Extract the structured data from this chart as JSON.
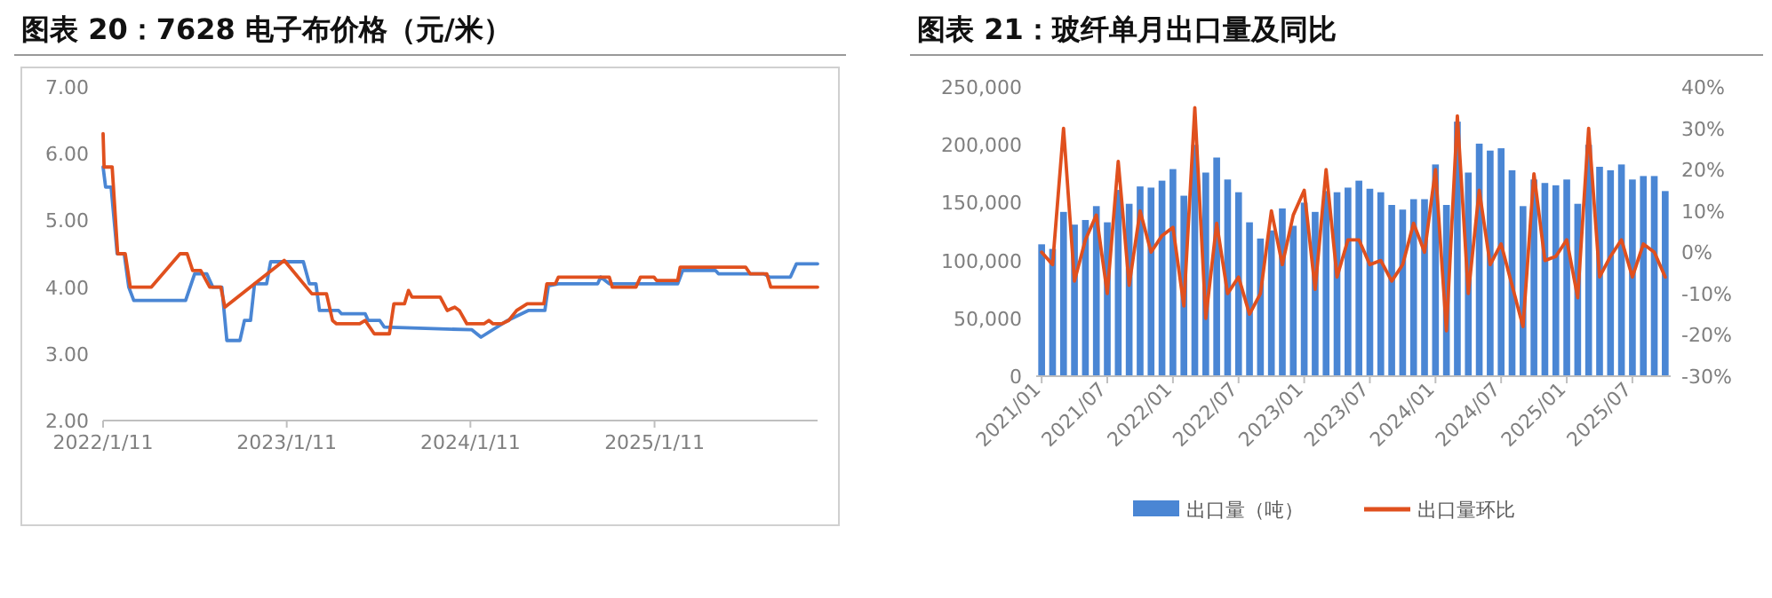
{
  "chart_data": [
    {
      "type": "line",
      "title": "图表 20：7628 电子布价格（元/米）",
      "xlim": [
        "2022-01-11",
        "2025-12-01"
      ],
      "xticks": [
        {
          "value": "2022-01-11",
          "label": "2022/1/11"
        },
        {
          "value": "2023-01-11",
          "label": "2023/1/11"
        },
        {
          "value": "2024-01-11",
          "label": "2024/1/11"
        },
        {
          "value": "2025-01-11",
          "label": "2025/1/11"
        }
      ],
      "ylim": [
        2,
        7
      ],
      "yticks": [
        {
          "value": 2,
          "label": "2.00"
        },
        {
          "value": 3,
          "label": "3.00"
        },
        {
          "value": 4,
          "label": "4.00"
        },
        {
          "value": 5,
          "label": "5.00"
        },
        {
          "value": 6,
          "label": "6.00"
        },
        {
          "value": 7,
          "label": "7.00"
        }
      ],
      "series": [
        {
          "color": "#4a86d4",
          "x": [
            "2022-01-11",
            "2022-01-16",
            "2022-01-27",
            "2022-02-08",
            "2022-02-22",
            "2022-03-03",
            "2022-03-13",
            "2022-06-24",
            "2022-07-12",
            "2022-08-05",
            "2022-08-17",
            "2022-09-04",
            "2022-09-14",
            "2022-10-10",
            "2022-10-19",
            "2022-10-31",
            "2022-11-08",
            "2022-12-02",
            "2022-12-10",
            "2023-02-13",
            "2023-02-25",
            "2023-03-10",
            "2023-03-17",
            "2023-04-24",
            "2023-04-30",
            "2023-06-16",
            "2023-06-22",
            "2023-07-15",
            "2023-07-24",
            "2024-01-14",
            "2024-02-01",
            "2024-03-25",
            "2024-05-05",
            "2024-06-07",
            "2024-06-14",
            "2024-07-04",
            "2024-09-20",
            "2024-09-26",
            "2024-10-13",
            "2025-01-05",
            "2025-02-26",
            "2025-03-08",
            "2025-05-12",
            "2025-05-18",
            "2025-08-16",
            "2025-08-28",
            "2025-10-08",
            "2025-10-20",
            "2025-12-01"
          ],
          "values": [
            5.8,
            5.5,
            5.5,
            4.5,
            4.5,
            4.0,
            3.8,
            3.8,
            4.2,
            4.2,
            4.0,
            4.0,
            3.2,
            3.2,
            3.5,
            3.5,
            4.05,
            4.05,
            4.38,
            4.38,
            4.05,
            4.05,
            3.65,
            3.65,
            3.6,
            3.6,
            3.5,
            3.5,
            3.4,
            3.36,
            3.25,
            3.5,
            3.65,
            3.65,
            4.02,
            4.05,
            4.05,
            4.15,
            4.05,
            4.05,
            4.05,
            4.25,
            4.25,
            4.2,
            4.2,
            4.15,
            4.15,
            4.35,
            4.35
          ]
        },
        {
          "color": "#e0501e",
          "x": [
            "2022-01-11",
            "2022-01-13",
            "2022-01-29",
            "2022-02-09",
            "2022-02-24",
            "2022-03-06",
            "2022-04-17",
            "2022-06-13",
            "2022-06-27",
            "2022-07-08",
            "2022-07-24",
            "2022-08-11",
            "2022-09-02",
            "2022-09-10",
            "2023-01-06",
            "2023-03-02",
            "2023-03-31",
            "2023-04-12",
            "2023-04-20",
            "2023-06-05",
            "2023-06-16",
            "2023-07-04",
            "2023-08-03",
            "2023-08-12",
            "2023-09-02",
            "2023-09-10",
            "2023-09-17",
            "2023-11-12",
            "2023-11-26",
            "2023-12-11",
            "2023-12-20",
            "2024-01-04",
            "2024-02-07",
            "2024-02-17",
            "2024-02-25",
            "2024-03-13",
            "2024-03-27",
            "2024-04-12",
            "2024-05-03",
            "2024-06-05",
            "2024-06-11",
            "2024-06-28",
            "2024-07-04",
            "2024-10-13",
            "2024-10-19",
            "2024-12-05",
            "2024-12-14",
            "2025-01-10",
            "2025-01-15",
            "2025-02-26",
            "2025-03-03",
            "2025-07-11",
            "2025-07-20",
            "2025-08-22",
            "2025-08-30",
            "2025-12-01"
          ],
          "values": [
            6.3,
            5.8,
            5.8,
            4.5,
            4.5,
            4.0,
            4.0,
            4.5,
            4.5,
            4.25,
            4.25,
            4.0,
            4.0,
            3.7,
            4.4,
            3.9,
            3.9,
            3.5,
            3.45,
            3.45,
            3.5,
            3.3,
            3.3,
            3.75,
            3.75,
            3.95,
            3.85,
            3.85,
            3.65,
            3.7,
            3.65,
            3.45,
            3.45,
            3.5,
            3.45,
            3.45,
            3.5,
            3.65,
            3.75,
            3.75,
            4.05,
            4.05,
            4.15,
            4.15,
            4.0,
            4.0,
            4.15,
            4.15,
            4.1,
            4.1,
            4.3,
            4.3,
            4.2,
            4.2,
            4.0,
            4.0
          ]
        }
      ]
    },
    {
      "type": "bar",
      "title": "图表 21：玻纤单月出口量及同比",
      "categories": [
        "2021/01",
        null,
        null,
        null,
        null,
        null,
        "2021/07",
        null,
        null,
        null,
        null,
        null,
        "2022/01",
        null,
        null,
        null,
        null,
        null,
        "2022/07",
        null,
        null,
        null,
        null,
        null,
        "2023/01",
        null,
        null,
        null,
        null,
        null,
        "2023/07",
        null,
        null,
        null,
        null,
        null,
        "2024/01",
        null,
        null,
        null,
        null,
        null,
        "2024/07",
        null,
        null,
        null,
        null,
        null,
        "2025/01",
        null,
        null,
        null,
        null,
        null,
        "2025/07",
        null,
        null,
        null
      ],
      "ylim": [
        0,
        250000
      ],
      "yticks": [
        0,
        {
          "value": 50000,
          "label": "50,000"
        },
        {
          "value": 100000,
          "label": "100,000"
        },
        {
          "value": 150000,
          "label": "150,000"
        },
        {
          "value": 200000,
          "label": "200,000"
        },
        {
          "value": 250000,
          "label": "250,000"
        }
      ],
      "y2lim": [
        -30,
        40
      ],
      "y2ticks": [
        {
          "value": -30,
          "label": "-30%"
        },
        {
          "value": -20,
          "label": "-20%"
        },
        {
          "value": -10,
          "label": "-10%"
        },
        {
          "value": 0,
          "label": "0%"
        },
        {
          "value": 10,
          "label": "10%"
        },
        {
          "value": 20,
          "label": "20%"
        },
        {
          "value": 30,
          "label": "30%"
        },
        {
          "value": 40,
          "label": "40%"
        }
      ],
      "legend": "bottom",
      "series": [
        {
          "name": "出口量（吨）",
          "color": "#4a86d4",
          "values": [
            114000,
            110000,
            142000,
            131000,
            135000,
            147000,
            133000,
            161000,
            149000,
            164000,
            163000,
            169000,
            179000,
            156000,
            200000,
            176000,
            189000,
            170000,
            159000,
            133000,
            119000,
            126000,
            145000,
            130000,
            150000,
            142000,
            160000,
            159000,
            163000,
            169000,
            162000,
            159000,
            148000,
            144000,
            153000,
            153000,
            183000,
            148000,
            220000,
            176000,
            201000,
            195000,
            197000,
            178000,
            147000,
            170000,
            167000,
            165000,
            170000,
            149000,
            200000,
            181000,
            178000,
            183000,
            170000,
            173000,
            173000,
            160000
          ]
        },
        {
          "name": "出口量环比",
          "type": "line",
          "axis": "y2",
          "color": "#e0501e",
          "values": [
            0,
            -3,
            30,
            -7,
            3,
            9,
            -10,
            22,
            -8,
            10,
            0,
            4,
            6,
            -13,
            35,
            -16,
            7,
            -10,
            -6,
            -15,
            -10,
            10,
            -3,
            9,
            15,
            -9,
            20,
            -6,
            3,
            3,
            -3,
            -2,
            -7,
            -3,
            7,
            0,
            20,
            -19,
            33,
            -10,
            15,
            -3,
            2,
            -8,
            -18,
            19,
            -2,
            -1,
            3,
            -11,
            30,
            -6,
            -1,
            3,
            -6,
            2,
            0,
            -6
          ]
        }
      ]
    }
  ]
}
